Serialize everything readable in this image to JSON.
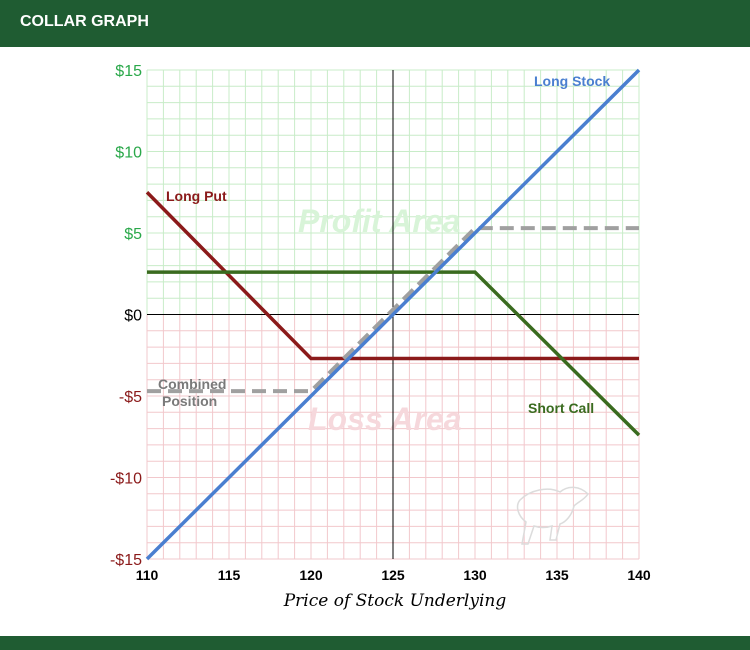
{
  "header": {
    "title": "COLLAR GRAPH"
  },
  "colors": {
    "header_bg": "#1f5c32",
    "profit_grid": "#c8ecc8",
    "loss_grid": "#f2c8cc",
    "long_stock": "#4a7fd0",
    "long_put": "#8b1a1a",
    "short_call": "#3a6b1f",
    "combined": "#a0a0a0",
    "y_tick_positive": "#2aa84a",
    "y_tick_negative": "#8b1a1a"
  },
  "chart_data": {
    "type": "line",
    "xlabel": "Price of Stock Underlying",
    "ylabel": "",
    "xlim": [
      110,
      140
    ],
    "ylim": [
      -15,
      15
    ],
    "x_ticks": [
      "110",
      "115",
      "120",
      "125",
      "130",
      "135",
      "140"
    ],
    "y_ticks": [
      "$15",
      "$10",
      "$5",
      "$0",
      "-$5",
      "-$10",
      "-$15"
    ],
    "grid": true,
    "area_labels": {
      "profit": "Profit Area",
      "loss": "Loss Area"
    },
    "series": [
      {
        "name": "Long Stock",
        "style": "solid",
        "color": "#4a7fd0",
        "points": [
          [
            110,
            -15
          ],
          [
            140,
            15
          ]
        ]
      },
      {
        "name": "Long Put",
        "style": "solid",
        "color": "#8b1a1a",
        "points": [
          [
            110,
            7.5
          ],
          [
            120,
            -2.7
          ],
          [
            140,
            -2.7
          ]
        ]
      },
      {
        "name": "Short Call",
        "style": "solid",
        "color": "#3a6b1f",
        "points": [
          [
            110,
            2.6
          ],
          [
            130,
            2.6
          ],
          [
            140,
            -7.4
          ]
        ]
      },
      {
        "name": "Combined Position",
        "style": "dashed",
        "color": "#a0a0a0",
        "points": [
          [
            110,
            -4.7
          ],
          [
            120,
            -4.7
          ],
          [
            130,
            5.3
          ],
          [
            140,
            5.3
          ]
        ]
      }
    ]
  }
}
